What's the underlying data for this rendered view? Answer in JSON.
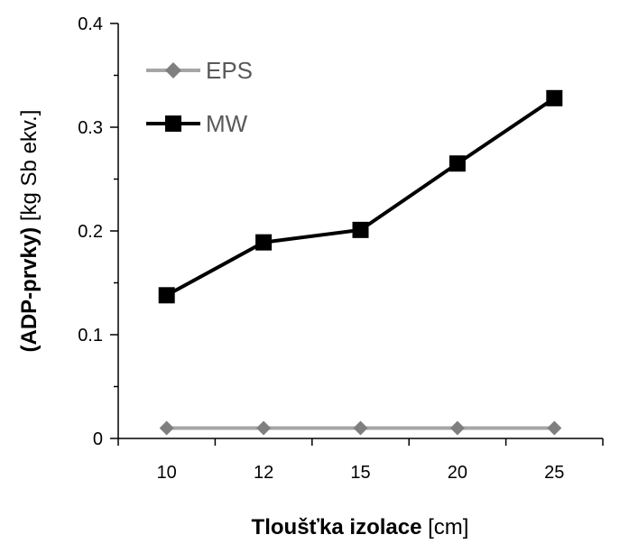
{
  "chart_data": {
    "type": "line",
    "categories": [
      "10",
      "12",
      "15",
      "20",
      "25"
    ],
    "series": [
      {
        "name": "EPS",
        "values": [
          0.01,
          0.01,
          0.01,
          0.01,
          0.01
        ],
        "color": "#a6a6a6",
        "marker_color": "#7f7f7f",
        "marker": "diamond"
      },
      {
        "name": "MW",
        "values": [
          0.138,
          0.189,
          0.201,
          0.265,
          0.328
        ],
        "color": "#000000",
        "marker_color": "#000000",
        "marker": "square"
      }
    ],
    "xlabel": {
      "bold": "Tloušťka izolace",
      "normal": " [cm]"
    },
    "ylabel": {
      "bold": "(ADP-prvky)",
      "normal": " [kg Sb ekv.]"
    },
    "ylim": [
      0,
      0.4
    ],
    "yticks": [
      "0",
      "0.1",
      "0.2",
      "0.3",
      "0.4"
    ],
    "legend_position": "top-left",
    "grid": false
  }
}
